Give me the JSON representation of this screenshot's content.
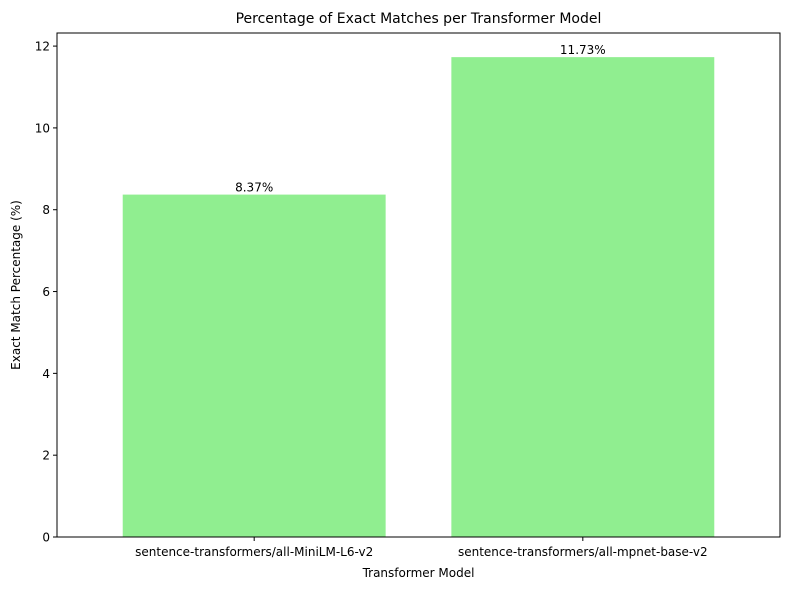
{
  "chart_data": {
    "type": "bar",
    "title": "Percentage of Exact Matches per Transformer Model",
    "xlabel": "Transformer Model",
    "ylabel": "Exact Match Percentage (%)",
    "categories": [
      "sentence-transformers/all-MiniLM-L6-v2",
      "sentence-transformers/all-mpnet-base-v2"
    ],
    "values": [
      8.37,
      11.73
    ],
    "value_labels": [
      "8.37%",
      "11.73%"
    ],
    "ylim": [
      0,
      12.32
    ],
    "yticks": [
      0,
      2,
      4,
      6,
      8,
      10,
      12
    ],
    "ytick_labels": [
      "0",
      "2",
      "4",
      "6",
      "8",
      "10",
      "12"
    ],
    "bar_color": "#90ee90",
    "grid": false,
    "legend": "none"
  }
}
